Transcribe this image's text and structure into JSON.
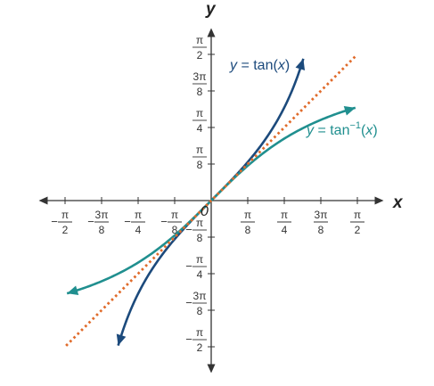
{
  "chart_data": {
    "type": "line",
    "xlabel": "x",
    "ylabel": "y",
    "origin_label": "0",
    "xlim": [
      -1.7671,
      1.7671
    ],
    "ylim": [
      -1.7671,
      1.7671
    ],
    "ticks": [
      {
        "value": -1.5708,
        "sign": "−",
        "num": "π",
        "den": "2"
      },
      {
        "value": -1.1781,
        "sign": "−",
        "num": "3π",
        "den": "8"
      },
      {
        "value": -0.7854,
        "sign": "−",
        "num": "π",
        "den": "4"
      },
      {
        "value": -0.3927,
        "sign": "−",
        "num": "π",
        "den": "8"
      },
      {
        "value": 0.3927,
        "sign": "",
        "num": "π",
        "den": "8"
      },
      {
        "value": 0.7854,
        "sign": "",
        "num": "π",
        "den": "4"
      },
      {
        "value": 1.1781,
        "sign": "",
        "num": "3π",
        "den": "8"
      },
      {
        "value": 1.5708,
        "sign": "",
        "num": "π",
        "den": "2"
      }
    ],
    "grid": false,
    "series": [
      {
        "name": "y = tan(x)",
        "function": "tan",
        "x_range": [
          -1.0,
          0.99
        ],
        "color": "#1c4a7c"
      },
      {
        "name": "y = tan⁻¹(x)",
        "function": "atan",
        "x_range": [
          -1.55,
          1.55
        ],
        "color": "#208f8f"
      },
      {
        "function": "identity",
        "x_range": [
          -1.56,
          1.56
        ],
        "color": "#e06b2b",
        "style": "dotted"
      }
    ]
  },
  "labels": {
    "tan_prefix": "y",
    "tan_rest": " = tan(",
    "tan_x": "x",
    "tan_close": ")",
    "atan_prefix": "y",
    "atan_rest": " = tan",
    "atan_sup": "−1",
    "atan_open": "(",
    "atan_x": "x",
    "atan_close": ")"
  }
}
